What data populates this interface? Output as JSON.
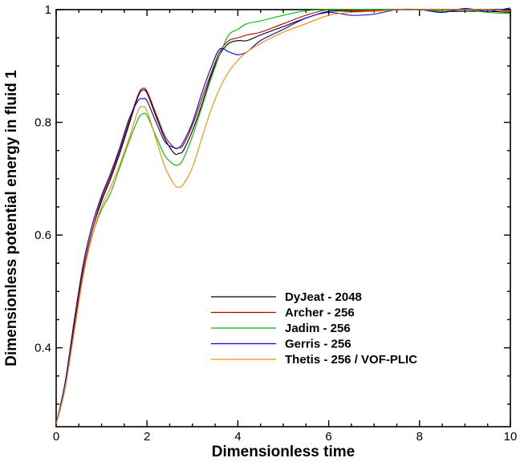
{
  "chart_data": {
    "type": "line",
    "title": "",
    "xlabel": "Dimensionless time",
    "ylabel": "Dimensionless potential energy in fluid 1",
    "xlim": [
      0,
      10
    ],
    "ylim": [
      0.26,
      1.0
    ],
    "grid": false,
    "legend_position": "center-right",
    "x_major_ticks": [
      0,
      2,
      4,
      6,
      8,
      10
    ],
    "x_tick_labels": [
      "0",
      "2",
      "4",
      "6",
      "8",
      "10"
    ],
    "y_major_ticks": [
      0.4,
      0.6,
      0.8,
      1.0
    ],
    "y_tick_labels": [
      "0.4",
      "0.6",
      "0.8",
      "1"
    ],
    "x": [
      0,
      0.2,
      0.4,
      0.6,
      0.8,
      1.0,
      1.2,
      1.4,
      1.6,
      1.8,
      1.9,
      2.0,
      2.2,
      2.4,
      2.6,
      2.7,
      2.8,
      3.0,
      3.2,
      3.4,
      3.6,
      3.8,
      4.0,
      4.2,
      4.5,
      5.0,
      5.5,
      6.0,
      6.5,
      7.0,
      7.5,
      8.0,
      8.5,
      9.0,
      9.5,
      10.0
    ],
    "series": [
      {
        "name": "DyJeat - 2048",
        "color": "#000000",
        "values": [
          0.265,
          0.33,
          0.44,
          0.54,
          0.61,
          0.66,
          0.7,
          0.745,
          0.795,
          0.845,
          0.857,
          0.852,
          0.81,
          0.77,
          0.745,
          0.745,
          0.75,
          0.785,
          0.83,
          0.88,
          0.92,
          0.94,
          0.945,
          0.945,
          0.955,
          0.97,
          0.985,
          0.997,
          0.997,
          0.997,
          1.0,
          1.0,
          0.997,
          0.997,
          0.997,
          0.995
        ]
      },
      {
        "name": "Archer - 256",
        "color": "#b00000",
        "values": [
          0.265,
          0.33,
          0.44,
          0.54,
          0.61,
          0.665,
          0.705,
          0.75,
          0.8,
          0.848,
          0.86,
          0.855,
          0.815,
          0.775,
          0.755,
          0.755,
          0.76,
          0.795,
          0.84,
          0.885,
          0.925,
          0.945,
          0.95,
          0.955,
          0.96,
          0.975,
          0.99,
          1.0,
          0.998,
          0.998,
          1.0,
          1.0,
          0.997,
          1.0,
          1.0,
          0.997
        ]
      },
      {
        "name": "Jadim - 256",
        "color": "#00bb00",
        "values": [
          0.265,
          0.33,
          0.43,
          0.53,
          0.6,
          0.645,
          0.675,
          0.72,
          0.765,
          0.805,
          0.815,
          0.812,
          0.775,
          0.74,
          0.725,
          0.725,
          0.735,
          0.775,
          0.825,
          0.875,
          0.92,
          0.955,
          0.965,
          0.975,
          0.98,
          0.99,
          0.998,
          1.0,
          1.0,
          1.0,
          1.0,
          1.0,
          0.997,
          1.0,
          0.995,
          0.993
        ]
      },
      {
        "name": "Gerris - 256",
        "color": "#0000dd",
        "values": [
          0.265,
          0.34,
          0.45,
          0.55,
          0.62,
          0.67,
          0.71,
          0.755,
          0.805,
          0.838,
          0.842,
          0.838,
          0.8,
          0.765,
          0.755,
          0.755,
          0.765,
          0.8,
          0.85,
          0.895,
          0.93,
          0.925,
          0.92,
          0.925,
          0.945,
          0.965,
          0.985,
          0.995,
          0.99,
          0.992,
          1.0,
          1.0,
          0.995,
          1.002,
          0.997,
          1.003
        ]
      },
      {
        "name": "Thetis - 256 / VOF-PLIC",
        "color": "#ff8800",
        "values": [
          0.265,
          0.33,
          0.43,
          0.53,
          0.6,
          0.65,
          0.685,
          0.725,
          0.77,
          0.82,
          0.828,
          0.82,
          0.77,
          0.72,
          0.69,
          0.685,
          0.69,
          0.72,
          0.77,
          0.82,
          0.86,
          0.89,
          0.91,
          0.925,
          0.94,
          0.96,
          0.975,
          0.99,
          0.995,
          0.997,
          1.0,
          1.0,
          1.0,
          1.0,
          1.0,
          0.998
        ]
      }
    ]
  }
}
